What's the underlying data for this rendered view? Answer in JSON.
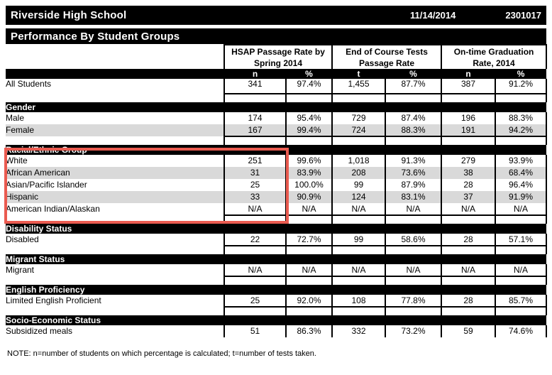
{
  "header": {
    "school_name": "Riverside High School",
    "date": "11/14/2014",
    "school_id": "2301017"
  },
  "page_title": "Performance By Student Groups",
  "table": {
    "column_groups": [
      {
        "title": [
          "HSAP Passage Rate by",
          "Spring 2014"
        ],
        "subcolumns": [
          "n",
          "%"
        ]
      },
      {
        "title": [
          "End of Course Tests",
          "Passage Rate"
        ],
        "subcolumns": [
          "t",
          "%"
        ]
      },
      {
        "title": [
          "On-time Graduation",
          "Rate, 2014"
        ],
        "subcolumns": [
          "n",
          "%"
        ]
      }
    ],
    "sections": [
      {
        "title": "",
        "rows": [
          {
            "label": "All Students",
            "values": [
              "341",
              "97.4%",
              "1,455",
              "87.7%",
              "387",
              "91.2%"
            ]
          }
        ]
      },
      {
        "title": "Gender",
        "rows": [
          {
            "label": "Male",
            "values": [
              "174",
              "95.4%",
              "729",
              "87.4%",
              "196",
              "88.3%"
            ]
          },
          {
            "label": "Female",
            "values": [
              "167",
              "99.4%",
              "724",
              "88.3%",
              "191",
              "94.2%"
            ]
          }
        ]
      },
      {
        "title": "Racial/Ethnic Group",
        "highlighted": true,
        "rows": [
          {
            "label": "White",
            "values": [
              "251",
              "99.6%",
              "1,018",
              "91.3%",
              "279",
              "93.9%"
            ]
          },
          {
            "label": "African American",
            "values": [
              "31",
              "83.9%",
              "208",
              "73.6%",
              "38",
              "68.4%"
            ]
          },
          {
            "label": "Asian/Pacific Islander",
            "values": [
              "25",
              "100.0%",
              "99",
              "87.9%",
              "28",
              "96.4%"
            ]
          },
          {
            "label": "Hispanic",
            "values": [
              "33",
              "90.9%",
              "124",
              "83.1%",
              "37",
              "91.9%"
            ]
          },
          {
            "label": "American Indian/Alaskan",
            "values": [
              "N/A",
              "N/A",
              "N/A",
              "N/A",
              "N/A",
              "N/A"
            ]
          }
        ]
      },
      {
        "title": "Disability Status",
        "rows": [
          {
            "label": "Disabled",
            "values": [
              "22",
              "72.7%",
              "99",
              "58.6%",
              "28",
              "57.1%"
            ]
          }
        ]
      },
      {
        "title": "Migrant Status",
        "rows": [
          {
            "label": "Migrant",
            "values": [
              "N/A",
              "N/A",
              "N/A",
              "N/A",
              "N/A",
              "N/A"
            ]
          }
        ]
      },
      {
        "title": "English Proficiency",
        "rows": [
          {
            "label": "Limited English Proficient",
            "values": [
              "25",
              "92.0%",
              "108",
              "77.8%",
              "28",
              "85.7%"
            ]
          }
        ]
      },
      {
        "title": "Socio-Economic Status",
        "rows": [
          {
            "label": "Subsidized meals",
            "values": [
              "51",
              "86.3%",
              "332",
              "73.2%",
              "59",
              "74.6%"
            ]
          }
        ]
      }
    ]
  },
  "note": "NOTE: n=number of students on which percentage is calculated; t=number of tests taken.",
  "highlight_box": {
    "border_color": "#ea5b50"
  },
  "colors": {
    "bar_background": "#000000",
    "bar_text": "#ffffff",
    "shaded_row": "#d9d9d9"
  }
}
